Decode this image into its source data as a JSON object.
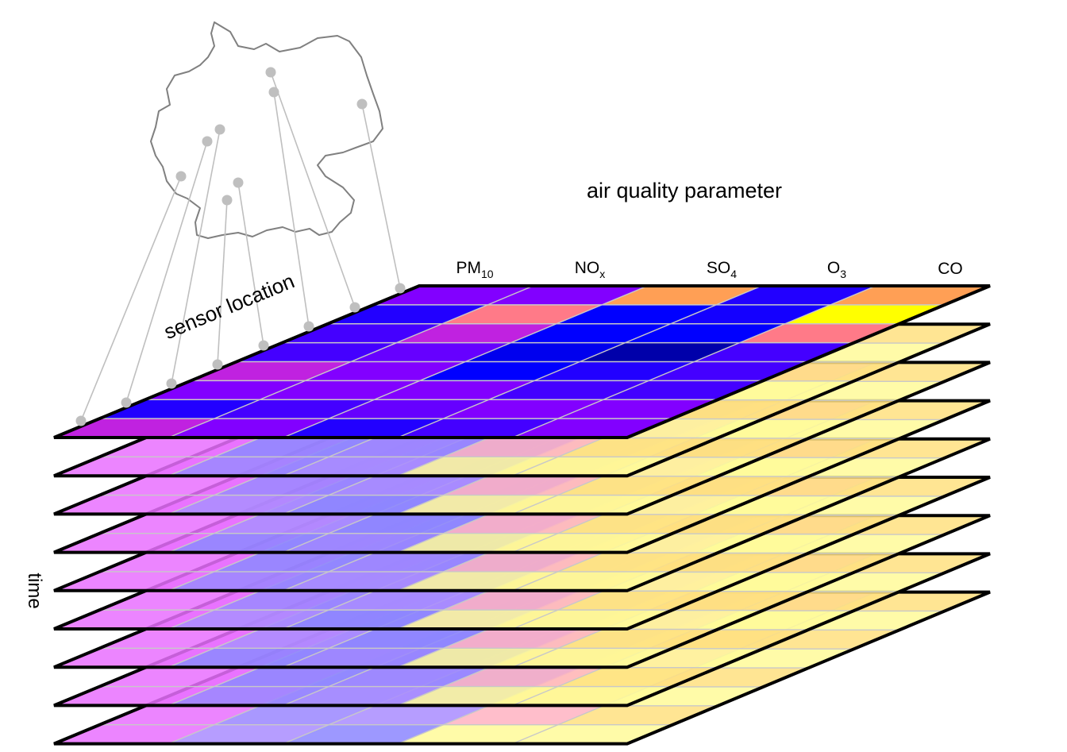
{
  "title": "air quality parameter",
  "axes": {
    "sensor_label": "sensor location",
    "time_label": "time"
  },
  "parameters": [
    {
      "base": "PM",
      "sub": "10"
    },
    {
      "base": "NO",
      "sub": "x"
    },
    {
      "base": "SO",
      "sub": "4"
    },
    {
      "base": "O",
      "sub": "3"
    },
    {
      "base": "CO",
      "sub": ""
    }
  ],
  "time_layers": 9,
  "sensor_rows": 8,
  "colors": {
    "outline": "#000000",
    "grid": "#c8c8c8",
    "map_stroke": "#808080",
    "sensor_point": "#bfbfbf",
    "leader_line": "#bfbfbf"
  },
  "top_layer_colors": [
    [
      "#8200ff",
      "#8200ff",
      "#ff9f55",
      "#2200ff",
      "#ff9f55"
    ],
    [
      "#2200ff",
      "#ff7a88",
      "#0000ff",
      "#1400ff",
      "#ffff00"
    ],
    [
      "#4400ff",
      "#c022e0",
      "#0000ff",
      "#0000ff",
      "#ff7a88"
    ],
    [
      "#4400ff",
      "#6600ff",
      "#0000ee",
      "#0000aa",
      "#4400ff"
    ],
    [
      "#c022e0",
      "#8200ff",
      "#0000ff",
      "#2200ff",
      "#4400ff"
    ],
    [
      "#8200ff",
      "#8200ff",
      "#8200ff",
      "#4400ff",
      "#4400ff"
    ],
    [
      "#2200ff",
      "#4400ff",
      "#6600ff",
      "#8200ff",
      "#8200ff"
    ],
    [
      "#c022e0",
      "#8200ff",
      "#2200ff",
      "#4400ff",
      "#8200ff"
    ]
  ],
  "lower_layer_colors": {
    "first_column": "#e970ff",
    "mid_columns": [
      "#9a86ff",
      "#a98cff",
      "#8c86ff"
    ],
    "o3_column": "#ffb3c2",
    "co_column": "#ffe080",
    "o3_highlight": "#fffa99"
  }
}
